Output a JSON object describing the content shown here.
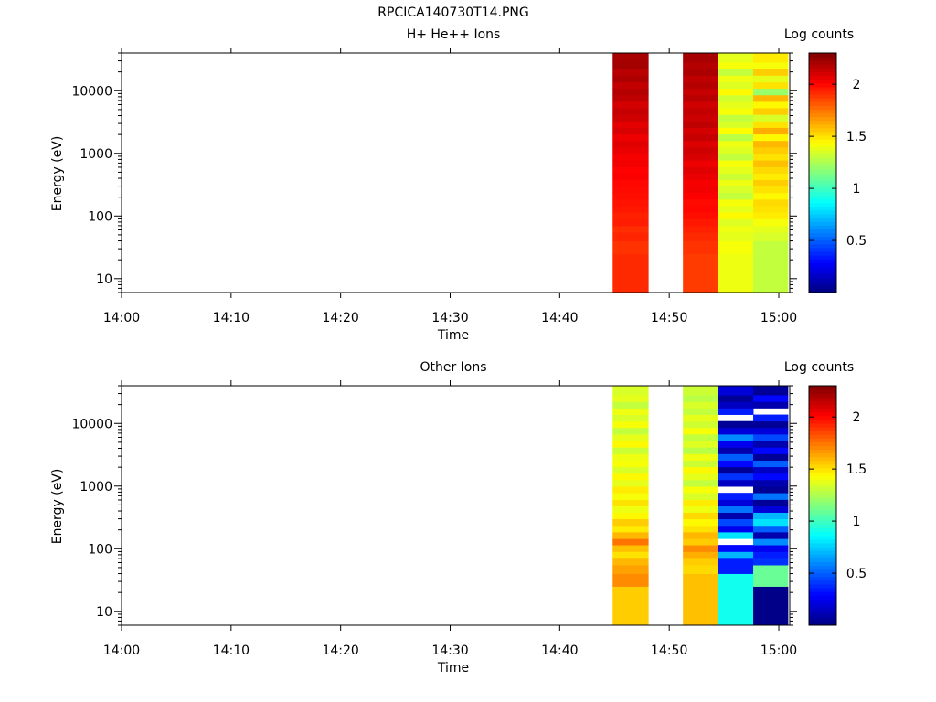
{
  "figure_title": "RPCICA140730T14.PNG",
  "chart_data": [
    {
      "type": "heatmap",
      "title": "H+ He++ Ions",
      "xlabel": "Time",
      "ylabel": "Energy (eV)",
      "yscale": "log",
      "ylim": [
        6,
        40000
      ],
      "xlim": [
        "14:00",
        "15:01"
      ],
      "x_ticks": [
        "14:00",
        "14:10",
        "14:20",
        "14:30",
        "14:40",
        "14:50",
        "15:00"
      ],
      "y_ticks": [
        "10",
        "100",
        "1000",
        "10000"
      ],
      "colorbar": {
        "label": "Log counts",
        "ticks": [
          "0.5",
          "1",
          "1.5",
          "2"
        ],
        "range": [
          0,
          2.3
        ],
        "colormap": "jet"
      },
      "energy_edges": [
        6,
        25,
        40,
        55,
        70,
        90,
        115,
        145,
        185,
        235,
        300,
        380,
        480,
        610,
        780,
        990,
        1260,
        1600,
        2030,
        2580,
        3280,
        4170,
        5300,
        6740,
        8570,
        10900,
        13850,
        17600,
        22400,
        28500,
        40000
      ],
      "time_bins": [
        {
          "start": "14:44:50",
          "end": "14:48:05",
          "values": [
            1.92,
            1.9,
            1.93,
            1.91,
            1.95,
            1.94,
            1.96,
            1.97,
            1.98,
            1.99,
            2.0,
            2.02,
            2.01,
            2.04,
            2.03,
            2.06,
            2.08,
            2.05,
            2.1,
            2.07,
            2.12,
            2.14,
            2.11,
            2.16,
            2.18,
            2.15,
            2.2,
            2.17,
            2.22,
            2.21
          ]
        },
        {
          "start": "14:51:15",
          "end": "14:54:25",
          "values": [
            1.88,
            1.9,
            1.92,
            1.94,
            1.96,
            1.98,
            2.0,
            1.99,
            2.02,
            2.04,
            2.03,
            2.06,
            2.08,
            2.05,
            2.1,
            2.12,
            2.09,
            2.14,
            2.11,
            2.16,
            2.13,
            2.15,
            2.12,
            2.17,
            2.14,
            2.18,
            2.16,
            2.2,
            2.18,
            2.21
          ]
        },
        {
          "start": "14:54:25",
          "end": "14:57:40",
          "values": [
            1.4,
            1.42,
            1.38,
            1.4,
            1.36,
            1.45,
            1.38,
            1.42,
            1.3,
            1.35,
            1.4,
            1.32,
            1.38,
            1.42,
            1.3,
            1.36,
            1.4,
            1.28,
            1.44,
            1.35,
            1.3,
            1.42,
            1.38,
            1.33,
            1.45,
            1.36,
            1.4,
            1.3,
            1.42,
            1.38
          ]
        },
        {
          "start": "14:57:40",
          "end": "15:00:50",
          "values": [
            1.3,
            1.3,
            1.35,
            1.38,
            1.42,
            1.48,
            1.5,
            1.52,
            1.45,
            1.5,
            1.55,
            1.48,
            1.52,
            1.58,
            1.5,
            1.55,
            1.6,
            1.45,
            1.62,
            1.5,
            1.35,
            1.55,
            1.45,
            1.6,
            1.2,
            1.5,
            1.38,
            1.55,
            1.42,
            1.48
          ]
        }
      ]
    },
    {
      "type": "heatmap",
      "title": "Other Ions",
      "xlabel": "Time",
      "ylabel": "Energy (eV)",
      "yscale": "log",
      "ylim": [
        6,
        40000
      ],
      "xlim": [
        "14:00",
        "15:01"
      ],
      "x_ticks": [
        "14:00",
        "14:10",
        "14:20",
        "14:30",
        "14:40",
        "14:50",
        "15:00"
      ],
      "y_ticks": [
        "10",
        "100",
        "1000",
        "10000"
      ],
      "colorbar": {
        "label": "Log counts",
        "ticks": [
          "0.5",
          "1",
          "1.5",
          "2"
        ],
        "range": [
          0,
          2.3
        ],
        "colormap": "jet"
      },
      "energy_edges": [
        6,
        25,
        40,
        55,
        70,
        90,
        115,
        145,
        185,
        235,
        300,
        380,
        480,
        610,
        780,
        990,
        1260,
        1600,
        2030,
        2580,
        3280,
        4170,
        5300,
        6740,
        8570,
        10900,
        13850,
        17600,
        22400,
        28500,
        40000
      ],
      "time_bins": [
        {
          "start": "14:44:50",
          "end": "14:48:05",
          "values": [
            1.55,
            1.7,
            1.65,
            1.6,
            1.5,
            1.58,
            1.75,
            1.6,
            1.48,
            1.55,
            1.45,
            1.4,
            1.5,
            1.42,
            1.48,
            1.38,
            1.45,
            1.35,
            1.42,
            1.4,
            1.32,
            1.45,
            1.38,
            1.3,
            1.42,
            1.35,
            1.4,
            1.3,
            1.38,
            1.35
          ]
        },
        {
          "start": "14:51:15",
          "end": "14:54:25",
          "values": [
            1.58,
            1.58,
            1.52,
            1.55,
            1.62,
            1.7,
            1.55,
            1.6,
            1.5,
            1.45,
            1.52,
            1.4,
            1.48,
            1.35,
            1.42,
            1.3,
            1.38,
            1.45,
            1.32,
            1.4,
            1.28,
            1.36,
            1.3,
            1.42,
            1.33,
            1.38,
            1.3,
            1.35,
            1.28,
            1.32
          ]
        },
        {
          "start": "14:54:25",
          "end": "14:57:40",
          "values": [
            0.9,
            0.9,
            0.35,
            0.35,
            0.7,
            0.3,
            null,
            0.8,
            0.25,
            0.45,
            0.1,
            0.55,
            0.2,
            0.35,
            null,
            0.15,
            0.4,
            0.05,
            0.3,
            0.5,
            0.1,
            0.25,
            0.6,
            0.2,
            0.05,
            null,
            0.35,
            0.15,
            0.05,
            0.2
          ]
        },
        {
          "start": "14:57:40",
          "end": "15:00:50",
          "values": [
            0.02,
            1.1,
            1.1,
            0.4,
            0.35,
            0.25,
            0.6,
            0.1,
            0.5,
            0.8,
            0.7,
            0.2,
            0.05,
            0.55,
            0.05,
            0.1,
            0.3,
            0.15,
            0.5,
            0.05,
            0.3,
            0.1,
            0.45,
            0.2,
            0.05,
            0.35,
            null,
            0.1,
            0.3,
            0.05
          ]
        }
      ]
    }
  ]
}
